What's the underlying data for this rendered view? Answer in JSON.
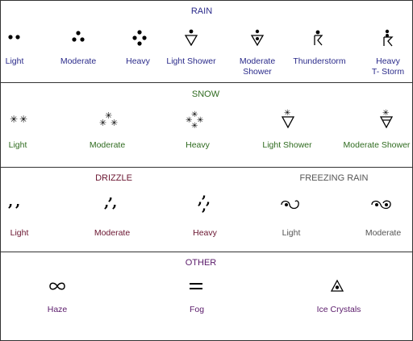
{
  "colors": {
    "rain": "#2a2a8a",
    "snow": "#2f6b1f",
    "drizzle": "#6a1530",
    "freezing": "#555555",
    "other": "#5a1a6a",
    "symbol": "#000000"
  },
  "rain": {
    "title": "RAIN",
    "items": [
      {
        "label": "Light",
        "icon": "two-dots-icon"
      },
      {
        "label": "Moderate",
        "icon": "three-dots-icon"
      },
      {
        "label": "Heavy",
        "icon": "four-dots-icon"
      },
      {
        "label": "Light Shower",
        "icon": "dot-triangle-icon"
      },
      {
        "label": "Moderate\nShower",
        "icon": "two-dot-triangle-icon"
      },
      {
        "label": "Thunderstorm",
        "icon": "thunderstorm-icon"
      },
      {
        "label": "Heavy\nT- Storm",
        "icon": "heavy-thunderstorm-icon"
      }
    ]
  },
  "snow": {
    "title": "SNOW",
    "items": [
      {
        "label": "Light",
        "icon": "two-asterisks-icon"
      },
      {
        "label": "Moderate",
        "icon": "three-asterisks-icon"
      },
      {
        "label": "Heavy",
        "icon": "four-asterisks-icon"
      },
      {
        "label": "Light Shower",
        "icon": "asterisk-triangle-icon"
      },
      {
        "label": "Moderate Shower",
        "icon": "asterisk-filled-triangle-icon"
      }
    ]
  },
  "drizzle": {
    "title": "DRIZZLE",
    "items": [
      {
        "label": "Light",
        "icon": "two-commas-icon"
      },
      {
        "label": "Moderate",
        "icon": "three-commas-icon"
      },
      {
        "label": "Heavy",
        "icon": "four-commas-icon"
      }
    ]
  },
  "freezing_rain": {
    "title": "FREEZING RAIN",
    "items": [
      {
        "label": "Light",
        "icon": "freezing-light-icon"
      },
      {
        "label": "Moderate",
        "icon": "freezing-moderate-icon"
      }
    ]
  },
  "other": {
    "title": "OTHER",
    "items": [
      {
        "label": "Haze",
        "icon": "infinity-icon"
      },
      {
        "label": "Fog",
        "icon": "equals-icon"
      },
      {
        "label": "Ice Crystals",
        "icon": "ice-crystal-triangle-icon"
      }
    ]
  }
}
